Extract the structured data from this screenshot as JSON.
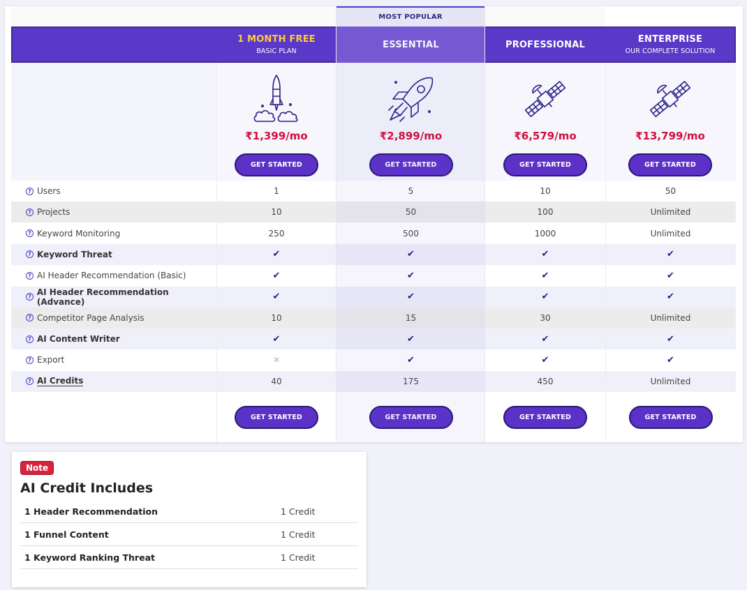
{
  "popular_label": "MOST POPULAR",
  "plans": [
    {
      "name": "1 MONTH FREE",
      "sub": "BASIC PLAN",
      "price": "₹1,399/mo",
      "cta": "GET STARTED",
      "icon": "rocket-launch-icon"
    },
    {
      "name": "ESSENTIAL",
      "sub": "",
      "price": "₹2,899/mo",
      "cta": "GET STARTED",
      "icon": "rocket-flying-icon"
    },
    {
      "name": "PROFESSIONAL",
      "sub": "",
      "price": "₹6,579/mo",
      "cta": "GET STARTED",
      "icon": "satellite-icon"
    },
    {
      "name": "ENTERPRISE",
      "sub": "OUR COMPLETE SOLUTION",
      "price": "₹13,799/mo",
      "cta": "GET STARTED",
      "icon": "satellite-icon"
    }
  ],
  "features": [
    {
      "label": "Users",
      "style": "normal",
      "values": [
        "1",
        "5",
        "10",
        "50"
      ]
    },
    {
      "label": "Projects",
      "style": "normal",
      "values": [
        "10",
        "50",
        "100",
        "Unlimited"
      ]
    },
    {
      "label": "Keyword Monitoring",
      "style": "normal",
      "values": [
        "250",
        "500",
        "1000",
        "Unlimited"
      ]
    },
    {
      "label": "Keyword Threat",
      "style": "bold",
      "values": [
        "✔",
        "✔",
        "✔",
        "✔"
      ]
    },
    {
      "label": "AI Header Recommendation (Basic)",
      "style": "normal",
      "values": [
        "✔",
        "✔",
        "✔",
        "✔"
      ]
    },
    {
      "label": "AI Header Recommendation (Advance)",
      "style": "bold",
      "values": [
        "✔",
        "✔",
        "✔",
        "✔"
      ]
    },
    {
      "label": "Competitor Page Analysis",
      "style": "normal",
      "values": [
        "10",
        "15",
        "30",
        "Unlimited"
      ]
    },
    {
      "label": "AI Content Writer",
      "style": "bold",
      "values": [
        "✔",
        "✔",
        "✔",
        "✔"
      ]
    },
    {
      "label": "Export",
      "style": "normal",
      "values": [
        "✕",
        "✔",
        "✔",
        "✔"
      ]
    },
    {
      "label": "AI Credits",
      "style": "underline",
      "values": [
        "40",
        "175",
        "450",
        "Unlimited"
      ]
    }
  ],
  "help_glyph": "?",
  "footer_cta": "GET STARTED",
  "note": {
    "badge": "Note",
    "title": "AI Credit Includes",
    "rows": [
      {
        "label": "1 Header Recommendation",
        "value": "1 Credit"
      },
      {
        "label": "1 Funnel Content",
        "value": "1 Credit"
      },
      {
        "label": "1 Keyword Ranking Threat",
        "value": "1 Credit"
      }
    ]
  },
  "colors": {
    "header": "#5a38c8",
    "header_popular": "#7659d3",
    "button": "#5c31c8",
    "price": "#d0103a",
    "gold": "#ffcc3c",
    "badge": "#d9233d"
  }
}
